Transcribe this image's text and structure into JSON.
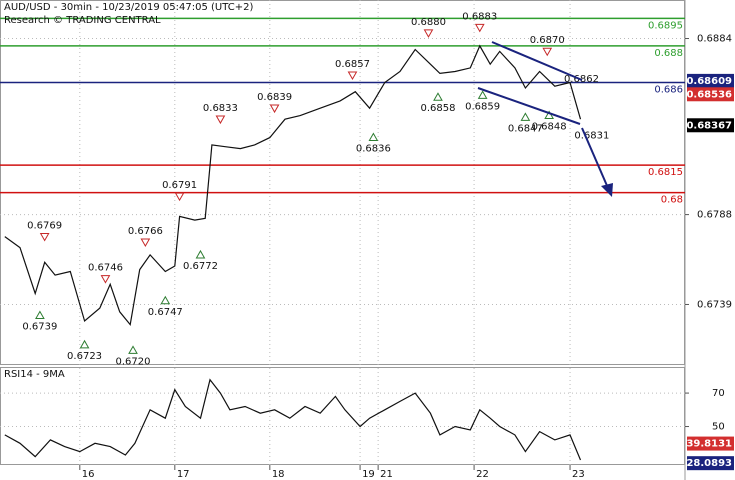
{
  "chart_data": [
    {
      "type": "line",
      "title": "AUD/USD - 30min - 10/23/2019 05:47:05 (UTC+2)",
      "subtitle": "Research © TRADING CENTRAL",
      "x": [
        0.05,
        0.21,
        0.37,
        0.47,
        0.58,
        0.74,
        0.89,
        1.05,
        1.16,
        1.26,
        1.37,
        1.47,
        1.58,
        1.74,
        1.84,
        1.89,
        2.05,
        2.16,
        2.23,
        2.37,
        2.53,
        2.68,
        2.84,
        3.0,
        3.16,
        3.37,
        3.58,
        3.74,
        3.89,
        4.05,
        4.21,
        4.37,
        4.53,
        4.63,
        4.79,
        4.95,
        5.05,
        5.16,
        5.26,
        5.42,
        5.53,
        5.68,
        5.84,
        6.0,
        6.11
      ],
      "series": [
        {
          "color": "#111111",
          "values": [
            0.6776,
            0.677,
            0.6745,
            0.6762,
            0.6755,
            0.6757,
            0.673,
            0.6737,
            0.675,
            0.6735,
            0.6728,
            0.6758,
            0.6766,
            0.6757,
            0.676,
            0.6787,
            0.6785,
            0.6786,
            0.6826,
            0.6825,
            0.6824,
            0.6826,
            0.683,
            0.684,
            0.6842,
            0.6846,
            0.685,
            0.6855,
            0.6846,
            0.686,
            0.6866,
            0.6878,
            0.687,
            0.6865,
            0.6866,
            0.6868,
            0.688,
            0.687,
            0.6877,
            0.6868,
            0.6857,
            0.6866,
            0.6858,
            0.686,
            0.684
          ]
        }
      ],
      "xlim": [
        0,
        7.21
      ],
      "ylim": [
        0.6706,
        0.6905
      ],
      "yticks": [
        0.6884,
        0.6788,
        0.6739
      ],
      "levels": [
        {
          "value": 0.6895,
          "color": "#2e9e2e"
        },
        {
          "value": 0.688,
          "color": "#2e9e2e"
        },
        {
          "value": 0.686,
          "color": "#1a237e"
        },
        {
          "value": 0.6815,
          "color": "#d01010"
        },
        {
          "value": 0.68,
          "color": "#d01010"
        }
      ],
      "price_tags": [
        {
          "value": 0.68609,
          "color": "#1a237e"
        },
        {
          "value": 0.68536,
          "color": "#d32f2f"
        },
        {
          "value": 0.68367,
          "color": "#000000"
        }
      ],
      "annotations": [
        {
          "x": 0.47,
          "value": 0.6769,
          "kind": "peak"
        },
        {
          "x": 0.42,
          "value": 0.6739,
          "kind": "trough"
        },
        {
          "x": 1.11,
          "value": 0.6746,
          "kind": "peak"
        },
        {
          "x": 0.89,
          "value": 0.6723,
          "kind": "trough"
        },
        {
          "x": 1.53,
          "value": 0.6766,
          "kind": "peak"
        },
        {
          "x": 1.4,
          "value": 0.672,
          "label": "0.6720",
          "kind": "trough"
        },
        {
          "x": 1.89,
          "value": 0.6791,
          "kind": "peak"
        },
        {
          "x": 1.74,
          "value": 0.6747,
          "kind": "trough"
        },
        {
          "x": 2.32,
          "value": 0.6833,
          "kind": "peak"
        },
        {
          "x": 2.11,
          "value": 0.6772,
          "kind": "trough"
        },
        {
          "x": 2.89,
          "value": 0.6839,
          "kind": "peak"
        },
        {
          "x": 3.71,
          "value": 0.6857,
          "kind": "peak"
        },
        {
          "x": 3.93,
          "value": 0.6836,
          "kind": "trough"
        },
        {
          "x": 4.51,
          "value": 0.688,
          "label": "0.6880",
          "kind": "peak"
        },
        {
          "x": 4.61,
          "value": 0.6858,
          "kind": "trough"
        },
        {
          "x": 5.05,
          "value": 0.6883,
          "kind": "peak"
        },
        {
          "x": 5.08,
          "value": 0.6859,
          "kind": "trough"
        },
        {
          "x": 5.76,
          "value": 0.687,
          "label": "0.6870",
          "kind": "peak"
        },
        {
          "x": 5.53,
          "value": 0.6847,
          "kind": "trough"
        },
        {
          "x": 5.78,
          "value": 0.6848,
          "kind": "trough"
        },
        {
          "x": 6.12,
          "value": 0.6862,
          "kind": "label"
        },
        {
          "x": 6.23,
          "value": 0.6831,
          "kind": "target"
        }
      ]
    },
    {
      "type": "line",
      "title": "RSI14 - 9MA",
      "x": [
        0.05,
        0.21,
        0.37,
        0.53,
        0.68,
        0.84,
        1.0,
        1.16,
        1.32,
        1.42,
        1.58,
        1.74,
        1.84,
        1.95,
        2.11,
        2.21,
        2.32,
        2.42,
        2.58,
        2.74,
        2.89,
        3.05,
        3.21,
        3.37,
        3.53,
        3.63,
        3.79,
        3.89,
        4.05,
        4.21,
        4.37,
        4.53,
        4.63,
        4.79,
        4.95,
        5.05,
        5.16,
        5.26,
        5.42,
        5.53,
        5.68,
        5.84,
        6.0,
        6.11
      ],
      "series": [
        {
          "color": "#111111",
          "values": [
            45,
            40,
            32,
            42,
            38,
            35,
            40,
            38,
            33,
            40,
            60,
            55,
            72,
            62,
            55,
            78,
            70,
            60,
            62,
            58,
            60,
            55,
            62,
            58,
            68,
            60,
            50,
            55,
            60,
            65,
            70,
            58,
            45,
            50,
            48,
            60,
            55,
            50,
            45,
            35,
            47,
            42,
            45,
            30
          ]
        }
      ],
      "xlim": [
        0,
        7.21
      ],
      "ylim": [
        27,
        85
      ],
      "yticks": [
        70,
        50
      ],
      "xticks": [
        {
          "value": 0.84,
          "label": "16"
        },
        {
          "value": 1.84,
          "label": "17"
        },
        {
          "value": 2.84,
          "label": "18"
        },
        {
          "value": 3.79,
          "label": "19"
        },
        {
          "value": 3.98,
          "label": "21"
        },
        {
          "value": 4.99,
          "label": "22"
        },
        {
          "value": 6.0,
          "label": "23"
        }
      ],
      "price_tags": [
        {
          "value": 39.8131,
          "color": "#d32f2f"
        },
        {
          "value": 28.0893,
          "color": "#1a237e"
        }
      ]
    }
  ]
}
